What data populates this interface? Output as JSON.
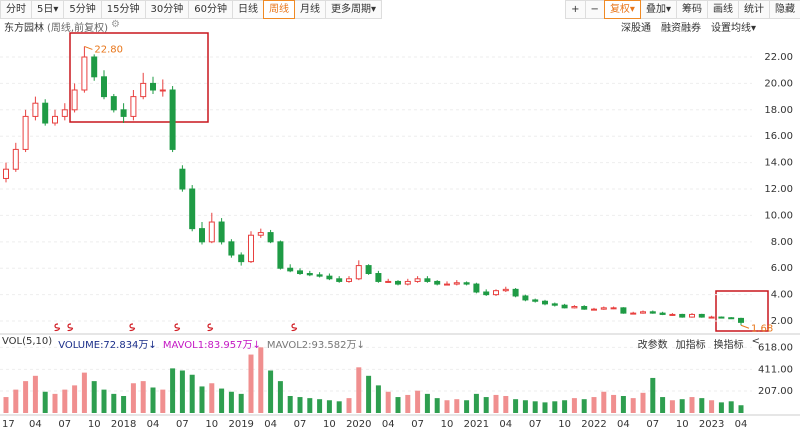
{
  "toolbar": {
    "periods": [
      "分时",
      "5日▾",
      "5分钟",
      "15分钟",
      "30分钟",
      "60分钟",
      "日线",
      "周线",
      "月线",
      "更多周期▾"
    ],
    "active_period": 7,
    "tools": [
      "+",
      "−",
      "复权▾",
      "叠加▾",
      "筹码",
      "画线",
      "统计",
      "隐藏"
    ]
  },
  "stock": {
    "name": "东方园林",
    "mode": "(周线,前复权)",
    "links": [
      "深股通",
      "融资融券",
      "设置均线▾"
    ]
  },
  "indicator": {
    "legend": [
      "VOL(5,10)",
      "VOLUME:72.834万↓",
      "MAVOL1:83.957万↓",
      "MAVOL2:93.582万↓"
    ],
    "buttons": [
      "改参数",
      "加指标",
      "换指标",
      "<"
    ]
  },
  "chart_data": [
    {
      "type": "candlestick",
      "up_color": "#e8403f",
      "down_color": "#1f9b45",
      "categories": [
        "17",
        null,
        null,
        "04",
        null,
        null,
        "07",
        null,
        null,
        "10",
        null,
        null,
        "2018",
        null,
        null,
        "04",
        null,
        null,
        "07",
        null,
        null,
        "10",
        null,
        null,
        "2019",
        null,
        null,
        "04",
        null,
        null,
        "07",
        null,
        null,
        "10",
        null,
        null,
        "2020",
        null,
        null,
        "04",
        null,
        null,
        "07",
        null,
        null,
        "10",
        null,
        null,
        "2021",
        null,
        null,
        "04",
        null,
        null,
        "07",
        null,
        null,
        "10",
        null,
        null,
        "2022",
        null,
        null,
        "04",
        null,
        null,
        "07",
        null,
        null,
        "10",
        null,
        null,
        "2023",
        null,
        null,
        "04"
      ],
      "open": [
        12.8,
        13.5,
        15.0,
        17.5,
        18.5,
        17.0,
        17.5,
        18.0,
        19.5,
        22.0,
        20.5,
        19.0,
        18.0,
        17.5,
        19.0,
        20.0,
        19.5,
        19.5,
        13.5,
        12.0,
        9.0,
        8.0,
        9.5,
        8.0,
        7.0,
        6.5,
        8.5,
        8.7,
        8.0,
        6.0,
        5.8,
        5.6,
        5.5,
        5.4,
        5.2,
        5.0,
        5.2,
        6.2,
        5.6,
        5.0,
        5.0,
        4.8,
        5.0,
        5.2,
        5.0,
        4.8,
        4.8,
        4.9,
        4.8,
        4.2,
        4.0,
        4.3,
        4.4,
        3.9,
        3.6,
        3.5,
        3.3,
        3.2,
        3.0,
        3.1,
        2.9,
        2.9,
        3.0,
        3.0,
        2.6,
        2.6,
        2.7,
        2.6,
        2.5,
        2.5,
        2.3,
        2.5,
        2.3,
        2.3,
        2.25,
        2.2
      ],
      "high": [
        14.0,
        15.5,
        18.0,
        19.0,
        18.8,
        18.0,
        18.5,
        20.0,
        22.8,
        22.2,
        21.0,
        19.2,
        18.5,
        19.5,
        20.8,
        20.5,
        20.3,
        19.8,
        13.8,
        12.3,
        9.5,
        10.2,
        9.8,
        8.2,
        7.2,
        8.8,
        9.0,
        8.9,
        8.1,
        6.3,
        6.0,
        5.8,
        5.7,
        5.6,
        5.4,
        5.4,
        6.6,
        6.3,
        5.8,
        5.2,
        5.1,
        5.2,
        5.4,
        5.4,
        5.1,
        5.0,
        5.1,
        5.0,
        4.9,
        4.4,
        4.4,
        4.6,
        4.5,
        4.0,
        3.7,
        3.6,
        3.4,
        3.3,
        3.2,
        3.2,
        3.0,
        3.1,
        3.1,
        3.05,
        2.7,
        2.8,
        2.8,
        2.7,
        2.6,
        2.55,
        2.6,
        2.55,
        2.4,
        2.35,
        2.3,
        2.25
      ],
      "low": [
        12.5,
        13.3,
        14.8,
        17.2,
        16.8,
        16.8,
        17.2,
        17.8,
        19.3,
        20.2,
        18.8,
        17.8,
        17.0,
        17.2,
        18.8,
        19.2,
        19.0,
        14.8,
        11.8,
        8.8,
        7.8,
        7.9,
        7.8,
        6.8,
        6.2,
        6.4,
        8.3,
        7.9,
        5.9,
        5.7,
        5.5,
        5.4,
        5.3,
        5.1,
        4.9,
        4.9,
        5.1,
        5.5,
        4.9,
        4.9,
        4.7,
        4.7,
        4.9,
        4.9,
        4.7,
        4.7,
        4.7,
        4.7,
        4.1,
        3.9,
        3.9,
        4.2,
        3.8,
        3.5,
        3.4,
        3.2,
        3.1,
        2.95,
        2.95,
        2.85,
        2.8,
        2.85,
        2.9,
        2.55,
        2.5,
        2.55,
        2.55,
        2.45,
        2.4,
        2.25,
        2.25,
        2.25,
        2.2,
        2.2,
        2.15,
        1.68
      ],
      "close": [
        13.5,
        15.0,
        17.5,
        18.5,
        17.0,
        17.5,
        18.0,
        19.5,
        22.0,
        20.5,
        19.0,
        18.0,
        17.5,
        19.0,
        20.0,
        19.5,
        19.5,
        15.0,
        12.0,
        9.0,
        8.0,
        9.5,
        8.0,
        7.0,
        6.5,
        8.5,
        8.7,
        8.0,
        6.0,
        5.8,
        5.6,
        5.5,
        5.4,
        5.2,
        5.0,
        5.2,
        6.2,
        5.6,
        5.0,
        5.0,
        4.8,
        5.0,
        5.2,
        5.0,
        4.8,
        4.8,
        4.9,
        4.8,
        4.2,
        4.0,
        4.3,
        4.4,
        3.9,
        3.6,
        3.5,
        3.3,
        3.2,
        3.0,
        3.1,
        2.9,
        2.9,
        3.0,
        3.0,
        2.6,
        2.6,
        2.7,
        2.6,
        2.5,
        2.5,
        2.3,
        2.5,
        2.3,
        2.3,
        2.25,
        2.2,
        1.9
      ],
      "annotations": [
        {
          "text": "22.80",
          "index": 8,
          "value": 22.8
        },
        {
          "text": "1.68",
          "index": 75,
          "value": 1.68
        }
      ],
      "ylim": [
        1.2,
        24
      ],
      "yticks": [
        {
          "value": 2,
          "label": "2.00"
        },
        {
          "value": 4,
          "label": "4.00"
        },
        {
          "value": 6,
          "label": "6.00"
        },
        {
          "value": 8,
          "label": "8.00"
        },
        {
          "value": 10,
          "label": "10.00"
        },
        {
          "value": 12,
          "label": "12.00"
        },
        {
          "value": 14,
          "label": "14.00"
        },
        {
          "value": 16,
          "label": "16.00"
        },
        {
          "value": 18,
          "label": "18.00"
        },
        {
          "value": 20,
          "label": "20.00"
        },
        {
          "value": 22,
          "label": "22.00"
        }
      ],
      "grid": true
    },
    {
      "type": "bar",
      "values": [
        150,
        220,
        300,
        350,
        200,
        180,
        220,
        260,
        380,
        300,
        220,
        180,
        160,
        280,
        300,
        240,
        220,
        420,
        400,
        360,
        250,
        280,
        230,
        200,
        180,
        550,
        618,
        400,
        300,
        160,
        150,
        140,
        130,
        120,
        110,
        140,
        430,
        350,
        260,
        200,
        150,
        170,
        210,
        180,
        140,
        120,
        130,
        120,
        180,
        150,
        170,
        160,
        130,
        120,
        110,
        100,
        110,
        120,
        140,
        130,
        150,
        200,
        170,
        160,
        140,
        190,
        330,
        150,
        120,
        130,
        150,
        140,
        120,
        100,
        110,
        73
      ],
      "ylim": [
        0,
        640
      ],
      "yticks": [
        {
          "value": 207,
          "label": "207.00"
        },
        {
          "value": 411,
          "label": "411.00"
        },
        {
          "value": 618,
          "label": "618.00"
        }
      ]
    }
  ]
}
